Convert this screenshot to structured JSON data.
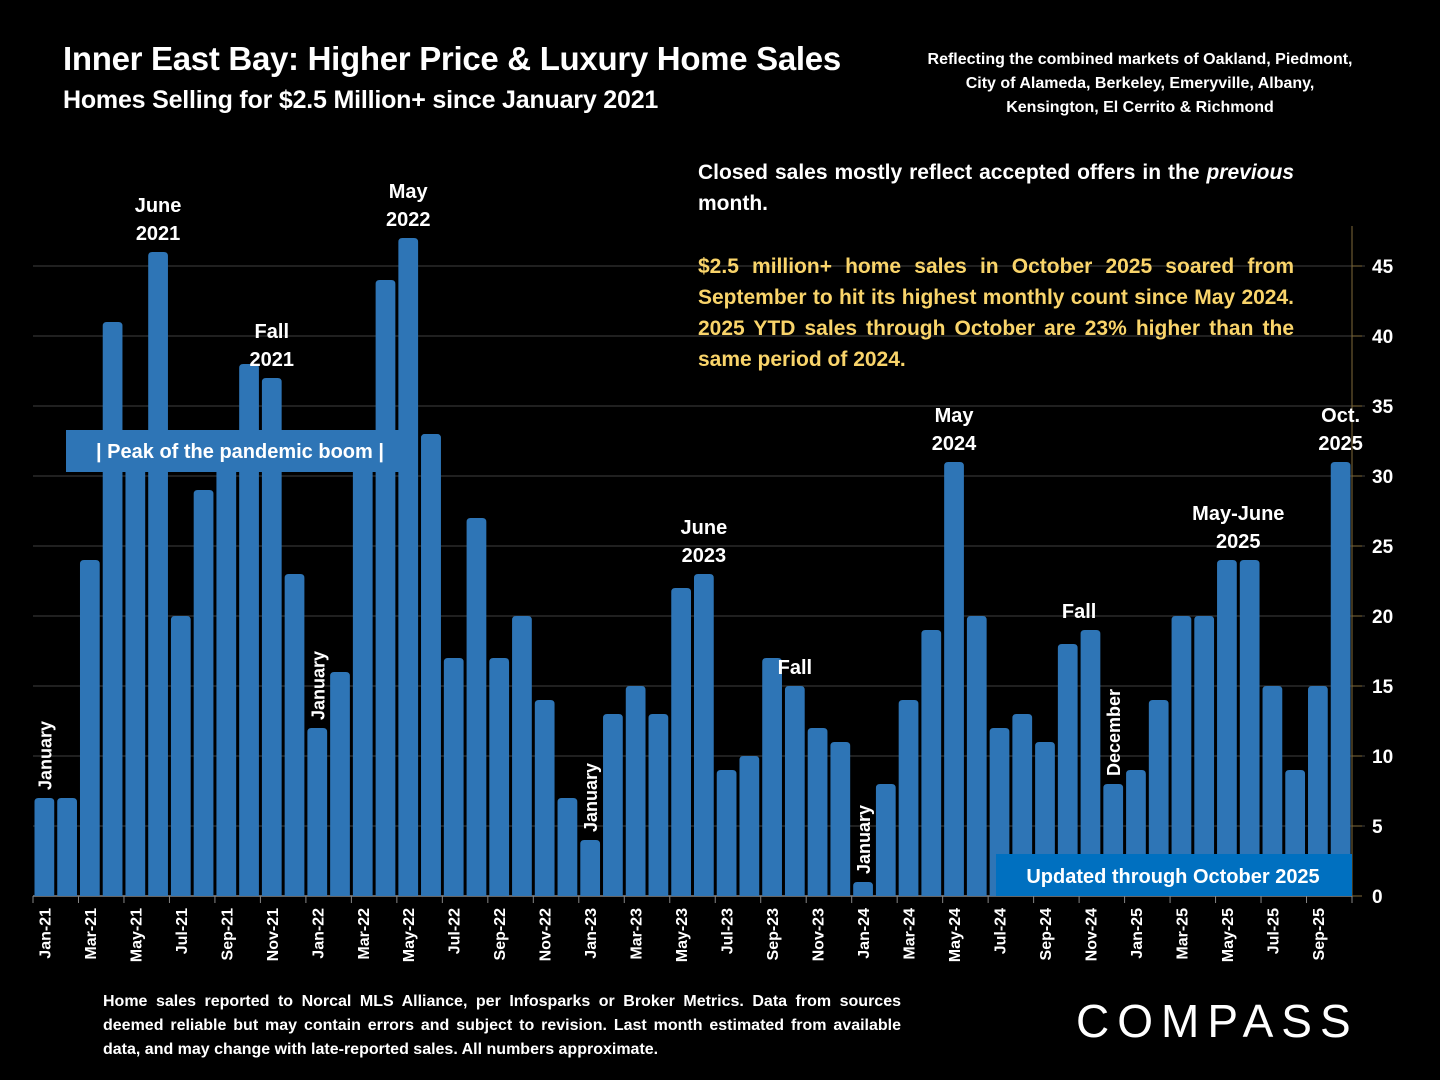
{
  "header": {
    "title": "Inner East Bay: Higher Price & Luxury Home Sales",
    "subtitle": "Homes Selling for $2.5 Million+ since January 2021",
    "markets": "Reflecting the combined markets of Oakland, Piedmont, City of Alameda, Berkeley, Emeryville, Albany, Kensington, El Cerrito & Richmond"
  },
  "notes": {
    "note1_before": "Closed sales mostly reflect accepted offers in the ",
    "note1_italic": "previous",
    "note1_after": " month.",
    "note2": "$2.5 million+ home sales in October 2025 soared from September to hit its highest monthly count since May 2024. 2025 YTD sales through October are 23% higher than the same period of 2024."
  },
  "footer": "Home sales reported to Norcal MLS Alliance, per Infosparks or Broker Metrics. Data from sources deemed reliable but may contain errors and subject to revision.  Last month estimated from available data, and may change with late-reported sales. All numbers approximate.",
  "logo": "COMPASS",
  "colors": {
    "bar": "#2e75b6",
    "banner": "#0070c0",
    "highlight_text": "#f9d46a",
    "axis": "#7f6a3a",
    "grid": "#404040"
  },
  "chart_data": {
    "type": "bar",
    "title": "Inner East Bay: Higher Price & Luxury Home Sales",
    "xlabel": "",
    "ylabel": "",
    "ylim": [
      0,
      48
    ],
    "yticks": [
      0,
      5,
      10,
      15,
      20,
      25,
      30,
      35,
      40,
      45
    ],
    "y_axis_side": "right",
    "grid": true,
    "categories": [
      "Jan-21",
      "Feb-21",
      "Mar-21",
      "Apr-21",
      "May-21",
      "Jun-21",
      "Jul-21",
      "Aug-21",
      "Sep-21",
      "Oct-21",
      "Nov-21",
      "Dec-21",
      "Jan-22",
      "Feb-22",
      "Mar-22",
      "Apr-22",
      "May-22",
      "Jun-22",
      "Jul-22",
      "Aug-22",
      "Sep-22",
      "Oct-22",
      "Nov-22",
      "Dec-22",
      "Jan-23",
      "Feb-23",
      "Mar-23",
      "Apr-23",
      "May-23",
      "Jun-23",
      "Jul-23",
      "Aug-23",
      "Sep-23",
      "Oct-23",
      "Nov-23",
      "Dec-23",
      "Jan-24",
      "Feb-24",
      "Mar-24",
      "Apr-24",
      "May-24",
      "Jun-24",
      "Jul-24",
      "Aug-24",
      "Sep-24",
      "Oct-24",
      "Nov-24",
      "Dec-24",
      "Jan-25",
      "Feb-25",
      "Mar-25",
      "Apr-25",
      "May-25",
      "Jun-25",
      "Jul-25",
      "Aug-25",
      "Sep-25",
      "Oct-25"
    ],
    "values": [
      7,
      7,
      24,
      41,
      31,
      46,
      20,
      29,
      31,
      38,
      37,
      23,
      12,
      16,
      31,
      44,
      47,
      33,
      17,
      27,
      17,
      20,
      14,
      7,
      4,
      13,
      15,
      13,
      22,
      23,
      9,
      10,
      17,
      15,
      12,
      11,
      1,
      8,
      14,
      19,
      31,
      20,
      12,
      13,
      11,
      18,
      19,
      8,
      9,
      14,
      20,
      20,
      24,
      24,
      15,
      9,
      15,
      31
    ],
    "tick_every": 2,
    "annotations": [
      {
        "text": [
          "January"
        ],
        "index": 0,
        "vertical": true
      },
      {
        "text": [
          "June",
          "2021"
        ],
        "index": 5
      },
      {
        "text": [
          "Fall",
          "2021"
        ],
        "index": 10
      },
      {
        "text": [
          "January"
        ],
        "index": 12,
        "vertical": true
      },
      {
        "text": [
          "May",
          "2022"
        ],
        "index": 16
      },
      {
        "text": [
          "January"
        ],
        "index": 24,
        "vertical": true
      },
      {
        "text": [
          "June",
          "2023"
        ],
        "index": 29
      },
      {
        "text": [
          "Fall"
        ],
        "index": 33
      },
      {
        "text": [
          "January"
        ],
        "index": 36,
        "vertical": true
      },
      {
        "text": [
          "May",
          "2024"
        ],
        "index": 40
      },
      {
        "text": [
          "Fall"
        ],
        "index": 45.5
      },
      {
        "text": [
          "December"
        ],
        "index": 47,
        "vertical": true
      },
      {
        "text": [
          "May-June",
          "2025"
        ],
        "index": 52.5
      },
      {
        "text": [
          "Oct.",
          "2025"
        ],
        "index": 57
      }
    ],
    "banners": [
      {
        "text": "|   Peak of the pandemic boom   |",
        "value": 32
      },
      {
        "text": "Updated through October 2025",
        "value": 1.5
      }
    ]
  }
}
